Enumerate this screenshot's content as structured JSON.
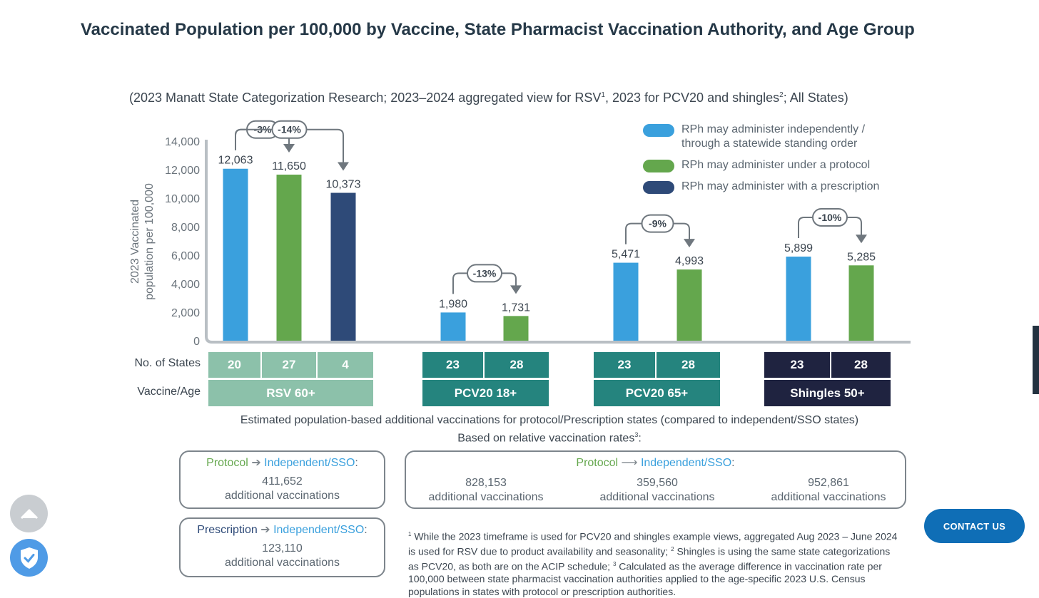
{
  "page": {
    "title": "Vaccinated Population per 100,000 by Vaccine, State Pharmacist Vaccination Authority, and Age Group",
    "subtitle_parts": [
      "(2023 Manatt State Categorization Research; 2023–2024 aggregated view for RSV",
      "1",
      ", 2023 for PCV20 and shingles",
      "2",
      "; All States)"
    ]
  },
  "chart_data": {
    "type": "bar",
    "ylabel": "2023 Vaccinated population per 100,000",
    "ylabel_lines": [
      "2023 Vaccinated",
      "population per 100,000"
    ],
    "ylim": [
      0,
      14000
    ],
    "yticks": [
      0,
      2000,
      4000,
      6000,
      8000,
      10000,
      12000,
      14000
    ],
    "ytick_labels": [
      "0",
      "2,000",
      "4,000",
      "6,000",
      "8,000",
      "10,000",
      "12,000",
      "14,000"
    ],
    "legend_position": "top-right",
    "legend": [
      {
        "name": "RPh may administer independently / through a statewide standing order",
        "lines": [
          "RPh may administer independently /",
          "through a statewide standing order"
        ],
        "color": "#3aa0dd"
      },
      {
        "name": "RPh may administer under a protocol",
        "lines": [
          "RPh may administer under a protocol"
        ],
        "color": "#64a74d"
      },
      {
        "name": "RPh may administer with a prescription",
        "lines": [
          "RPh may administer with a prescription"
        ],
        "color": "#2e4a78"
      }
    ],
    "groups": [
      {
        "label": "RSV 60+",
        "header_color": "#8cc1aa",
        "bars": [
          {
            "series": 0,
            "value": 12063,
            "label": "12,063",
            "states": "20"
          },
          {
            "series": 1,
            "value": 11650,
            "label": "11,650",
            "states": "27"
          },
          {
            "series": 2,
            "value": 10373,
            "label": "10,373",
            "states": "4"
          }
        ],
        "changes": [
          {
            "from": 0,
            "to": 1,
            "label": "-3%"
          },
          {
            "from": 0,
            "to": 2,
            "label": "-14%"
          }
        ]
      },
      {
        "label": "PCV20 18+",
        "header_color": "#25847e",
        "bars": [
          {
            "series": 0,
            "value": 1980,
            "label": "1,980",
            "states": "23"
          },
          {
            "series": 1,
            "value": 1731,
            "label": "1,731",
            "states": "28"
          }
        ],
        "changes": [
          {
            "from": 0,
            "to": 1,
            "label": "-13%"
          }
        ]
      },
      {
        "label": "PCV20 65+",
        "header_color": "#25847e",
        "bars": [
          {
            "series": 0,
            "value": 5471,
            "label": "5,471",
            "states": "23"
          },
          {
            "series": 1,
            "value": 4993,
            "label": "4,993",
            "states": "28"
          }
        ],
        "changes": [
          {
            "from": 0,
            "to": 1,
            "label": "-9%"
          }
        ]
      },
      {
        "label": "Shingles 50+",
        "header_color": "#1f2340",
        "bars": [
          {
            "series": 0,
            "value": 5899,
            "label": "5,899",
            "states": "23"
          },
          {
            "series": 1,
            "value": 5285,
            "label": "5,285",
            "states": "28"
          }
        ],
        "changes": [
          {
            "from": 0,
            "to": 1,
            "label": "-10%"
          }
        ]
      }
    ],
    "row_labels": {
      "states": "No. of States",
      "vaccine": "Vaccine/Age"
    }
  },
  "estimates": {
    "line1": "Estimated population-based additional vaccinations for protocol/Prescription states (compared to independent/SSO states)",
    "line2": "Based on relative vaccination rates",
    "line2_sup": "3",
    "line2_end": ":",
    "protocol_label": "Protocol",
    "prescription_label": "Prescription",
    "independent_label": "Independent/SSO",
    "colon": ":",
    "additional": "additional vaccinations",
    "rsv_protocol_value": "411,652",
    "rsv_prescription_value": "123,110",
    "other_values": [
      "828,153",
      "359,560",
      "952,861"
    ]
  },
  "footnote": {
    "s1": "1",
    "t1": " While the 2023 timeframe is used for PCV20 and shingles example views, aggregated Aug 2023 – June 2024 is used for RSV due to product availability and seasonality; ",
    "s2": "2",
    "t2": " Shingles is using the same state categorizations as PCV20, as both are on the ACIP schedule; ",
    "s3": "3",
    "t3": " Calculated as the average difference in vaccination rate per 100,000 between state pharmacist vaccination authorities applied to the age-specific 2023 U.S. Census populations in states with protocol or prescription authorities."
  },
  "ui": {
    "contact_label": "CONTACT US",
    "up_icon": "chevron-up-icon",
    "shield_icon": "shield-check-icon"
  }
}
